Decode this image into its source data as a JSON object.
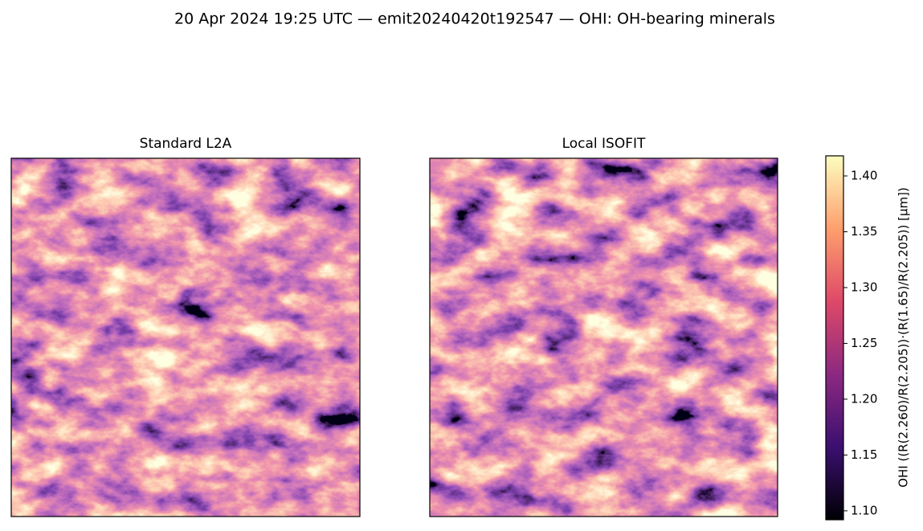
{
  "chart_data": {
    "type": "image",
    "title": "20 Apr 2024 19:25 UTC — emit20240420t192547 — OHI: OH-bearing minerals",
    "subplots": [
      {
        "title": "Standard L2A"
      },
      {
        "title": "Local ISOFIT"
      }
    ],
    "colormap": "magma",
    "colorbar": {
      "label": "OHI  ((R(2.260)/R(2.205))·(R(1.65)/R(2.205))  [µm])",
      "ylim": [
        1.092,
        1.418
      ],
      "yticks": [
        {
          "value": 1.1,
          "label": "1.10"
        },
        1.15,
        {
          "value": 1.2,
          "label": "1.20"
        },
        1.25,
        {
          "value": 1.3,
          "label": "1.30"
        },
        1.35,
        {
          "value": 1.4,
          "label": "1.40"
        }
      ]
    }
  }
}
